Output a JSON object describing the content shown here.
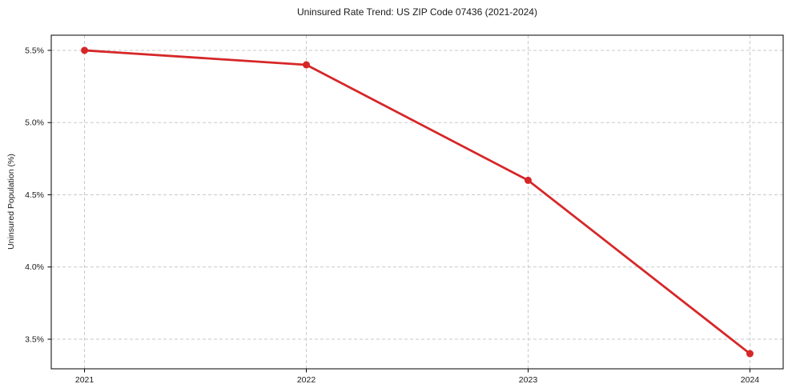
{
  "chart_data": {
    "type": "line",
    "title": "Uninsured Rate Trend: US ZIP Code 07436 (2021-2024)",
    "xlabel": "",
    "ylabel": "Uninsured Population (%)",
    "x": [
      2021,
      2022,
      2023,
      2024
    ],
    "series": [
      {
        "name": "Uninsured Population (%)",
        "values": [
          5.5,
          5.4,
          4.6,
          3.4
        ]
      }
    ],
    "xticks": [
      2021,
      2022,
      2023,
      2024
    ],
    "xtick_labels": [
      "2021",
      "2022",
      "2023",
      "2024"
    ],
    "yticks": [
      3.5,
      4.0,
      4.5,
      5.0,
      5.5
    ],
    "ytick_labels": [
      "3.5%",
      "4.0%",
      "4.5%",
      "5.0%",
      "5.5%"
    ],
    "xlim": [
      2020.85,
      2024.15
    ],
    "ylim": [
      3.295,
      5.605
    ],
    "grid": true,
    "legend": "none",
    "line_color": "#d62728",
    "marker_color": "#d62728",
    "grid_color": "#c9c9c9",
    "spine_color": "#000000",
    "text_color": "#1a1a1a",
    "background_color": "#ffffff"
  }
}
